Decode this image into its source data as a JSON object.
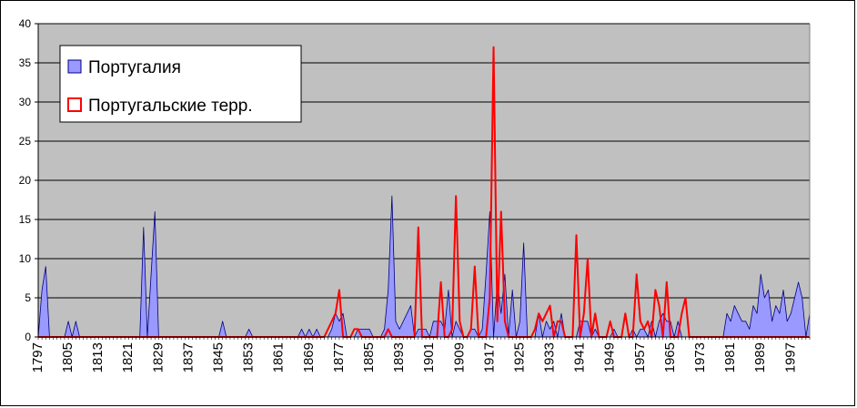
{
  "chart_data": {
    "type": "area",
    "x_start": 1797,
    "x_end": 2002,
    "xtick_labels": [
      "1797",
      "1805",
      "1813",
      "1821",
      "1829",
      "1837",
      "1845",
      "1853",
      "1861",
      "1869",
      "1877",
      "1885",
      "1893",
      "1901",
      "1909",
      "1917",
      "1925",
      "1933",
      "1941",
      "1949",
      "1957",
      "1965",
      "1973",
      "1981",
      "1989",
      "1997"
    ],
    "ylim": [
      0,
      40
    ],
    "yticks": [
      0,
      5,
      10,
      15,
      20,
      25,
      30,
      35,
      40
    ],
    "grid": true,
    "legend_position": "top-left",
    "colors": {
      "plot_bg": "#C0C0C0",
      "area_fill": "#9999FF",
      "area_edge": "#000080",
      "line": "#FF0000"
    },
    "series": [
      {
        "name": "Португалия",
        "type": "area",
        "points": [
          [
            1797,
            0
          ],
          [
            1798,
            6
          ],
          [
            1799,
            9
          ],
          [
            1800,
            0
          ],
          [
            1804,
            0
          ],
          [
            1805,
            2
          ],
          [
            1806,
            0
          ],
          [
            1807,
            2
          ],
          [
            1808,
            0
          ],
          [
            1824,
            0
          ],
          [
            1825,
            14
          ],
          [
            1826,
            0
          ],
          [
            1827,
            8
          ],
          [
            1828,
            16
          ],
          [
            1829,
            0
          ],
          [
            1845,
            0
          ],
          [
            1846,
            2
          ],
          [
            1847,
            0
          ],
          [
            1852,
            0
          ],
          [
            1853,
            1
          ],
          [
            1854,
            0
          ],
          [
            1866,
            0
          ],
          [
            1867,
            1
          ],
          [
            1868,
            0
          ],
          [
            1869,
            1
          ],
          [
            1870,
            0
          ],
          [
            1871,
            1
          ],
          [
            1872,
            0
          ],
          [
            1874,
            0
          ],
          [
            1875,
            1
          ],
          [
            1876,
            3
          ],
          [
            1877,
            2
          ],
          [
            1878,
            3
          ],
          [
            1879,
            0
          ],
          [
            1881,
            0
          ],
          [
            1882,
            1
          ],
          [
            1883,
            1
          ],
          [
            1884,
            1
          ],
          [
            1885,
            1
          ],
          [
            1886,
            0
          ],
          [
            1888,
            0
          ],
          [
            1889,
            1
          ],
          [
            1890,
            6
          ],
          [
            1891,
            18
          ],
          [
            1892,
            2
          ],
          [
            1893,
            1
          ],
          [
            1894,
            2
          ],
          [
            1895,
            3
          ],
          [
            1896,
            4
          ],
          [
            1897,
            0
          ],
          [
            1898,
            1
          ],
          [
            1899,
            1
          ],
          [
            1900,
            1
          ],
          [
            1901,
            0
          ],
          [
            1902,
            2
          ],
          [
            1903,
            2
          ],
          [
            1904,
            2
          ],
          [
            1905,
            1
          ],
          [
            1906,
            6
          ],
          [
            1907,
            0
          ],
          [
            1908,
            2
          ],
          [
            1909,
            1
          ],
          [
            1910,
            0
          ],
          [
            1911,
            0
          ],
          [
            1912,
            1
          ],
          [
            1913,
            1
          ],
          [
            1914,
            0
          ],
          [
            1915,
            1
          ],
          [
            1916,
            8
          ],
          [
            1917,
            16
          ],
          [
            1918,
            0
          ],
          [
            1919,
            7
          ],
          [
            1920,
            3
          ],
          [
            1921,
            8
          ],
          [
            1922,
            0
          ],
          [
            1923,
            6
          ],
          [
            1924,
            0
          ],
          [
            1925,
            2
          ],
          [
            1926,
            12
          ],
          [
            1927,
            0
          ],
          [
            1929,
            0
          ],
          [
            1930,
            3
          ],
          [
            1931,
            0
          ],
          [
            1932,
            2
          ],
          [
            1933,
            1
          ],
          [
            1934,
            2
          ],
          [
            1935,
            0
          ],
          [
            1936,
            3
          ],
          [
            1937,
            0
          ],
          [
            1940,
            0
          ],
          [
            1941,
            2
          ],
          [
            1942,
            2
          ],
          [
            1943,
            2
          ],
          [
            1944,
            0
          ],
          [
            1945,
            1
          ],
          [
            1946,
            0
          ],
          [
            1949,
            0
          ],
          [
            1950,
            1
          ],
          [
            1951,
            0
          ],
          [
            1954,
            0
          ],
          [
            1955,
            1
          ],
          [
            1956,
            0
          ],
          [
            1957,
            1
          ],
          [
            1958,
            1
          ],
          [
            1959,
            0
          ],
          [
            1960,
            2
          ],
          [
            1961,
            0
          ],
          [
            1962,
            2
          ],
          [
            1963,
            3
          ],
          [
            1964,
            2
          ],
          [
            1965,
            2
          ],
          [
            1966,
            0
          ],
          [
            1967,
            2
          ],
          [
            1968,
            0
          ],
          [
            1979,
            0
          ],
          [
            1980,
            3
          ],
          [
            1981,
            2
          ],
          [
            1982,
            4
          ],
          [
            1983,
            3
          ],
          [
            1984,
            2
          ],
          [
            1985,
            2
          ],
          [
            1986,
            1
          ],
          [
            1987,
            4
          ],
          [
            1988,
            3
          ],
          [
            1989,
            8
          ],
          [
            1990,
            5
          ],
          [
            1991,
            6
          ],
          [
            1992,
            2
          ],
          [
            1993,
            4
          ],
          [
            1994,
            3
          ],
          [
            1995,
            6
          ],
          [
            1996,
            2
          ],
          [
            1997,
            3
          ],
          [
            1998,
            5
          ],
          [
            1999,
            7
          ],
          [
            2000,
            5
          ],
          [
            2001,
            0
          ],
          [
            2002,
            3
          ]
        ]
      },
      {
        "name": "Португальские терр.",
        "type": "line",
        "points": [
          [
            1797,
            0
          ],
          [
            1873,
            0
          ],
          [
            1874,
            1
          ],
          [
            1875,
            2
          ],
          [
            1876,
            3
          ],
          [
            1877,
            6
          ],
          [
            1878,
            0
          ],
          [
            1880,
            0
          ],
          [
            1881,
            1
          ],
          [
            1882,
            1
          ],
          [
            1883,
            0
          ],
          [
            1889,
            0
          ],
          [
            1890,
            1
          ],
          [
            1891,
            0
          ],
          [
            1897,
            0
          ],
          [
            1898,
            14
          ],
          [
            1899,
            0
          ],
          [
            1903,
            0
          ],
          [
            1904,
            7
          ],
          [
            1905,
            0
          ],
          [
            1906,
            0
          ],
          [
            1907,
            1
          ],
          [
            1908,
            18
          ],
          [
            1909,
            2
          ],
          [
            1910,
            0
          ],
          [
            1911,
            0
          ],
          [
            1912,
            1
          ],
          [
            1913,
            9
          ],
          [
            1914,
            0
          ],
          [
            1916,
            0
          ],
          [
            1917,
            5
          ],
          [
            1918,
            37
          ],
          [
            1919,
            2
          ],
          [
            1920,
            16
          ],
          [
            1921,
            2
          ],
          [
            1922,
            0
          ],
          [
            1928,
            0
          ],
          [
            1929,
            1
          ],
          [
            1930,
            3
          ],
          [
            1931,
            2
          ],
          [
            1932,
            3
          ],
          [
            1933,
            4
          ],
          [
            1934,
            0
          ],
          [
            1935,
            2
          ],
          [
            1936,
            2
          ],
          [
            1937,
            0
          ],
          [
            1939,
            0
          ],
          [
            1940,
            13
          ],
          [
            1941,
            0
          ],
          [
            1942,
            3
          ],
          [
            1943,
            10
          ],
          [
            1944,
            0
          ],
          [
            1945,
            3
          ],
          [
            1946,
            0
          ],
          [
            1948,
            0
          ],
          [
            1949,
            2
          ],
          [
            1950,
            0
          ],
          [
            1952,
            0
          ],
          [
            1953,
            3
          ],
          [
            1954,
            0
          ],
          [
            1955,
            0
          ],
          [
            1956,
            8
          ],
          [
            1957,
            2
          ],
          [
            1958,
            1
          ],
          [
            1959,
            2
          ],
          [
            1960,
            0
          ],
          [
            1961,
            6
          ],
          [
            1962,
            4
          ],
          [
            1963,
            0
          ],
          [
            1964,
            7
          ],
          [
            1965,
            0
          ],
          [
            1967,
            0
          ],
          [
            1968,
            3
          ],
          [
            1969,
            5
          ],
          [
            1970,
            0
          ],
          [
            2002,
            0
          ]
        ]
      }
    ]
  }
}
